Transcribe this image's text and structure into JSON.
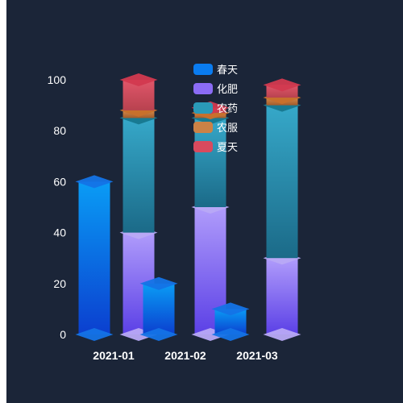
{
  "chart_data": {
    "type": "bar",
    "title": "",
    "xlabel": "",
    "ylabel": "",
    "ylim": [
      0,
      100
    ],
    "yticks": [
      0,
      20,
      40,
      60,
      80,
      100
    ],
    "categories": [
      "2021-01",
      "2021-02",
      "2021-03"
    ],
    "stacks": [
      {
        "stack_id": "spring",
        "series": [
          {
            "name": "春天",
            "values": [
              60,
              20,
              10
            ],
            "color_top": "#0a9cf5",
            "color_bottom": "#0b3fcf",
            "cap_color": "#1473e6"
          }
        ]
      },
      {
        "stack_id": "summer",
        "series": [
          {
            "name": "化肥",
            "values": [
              40,
              50,
              30
            ],
            "color_top": "#b09cfb",
            "color_bottom": "#5b40e6",
            "cap_color": "#b8a9f6"
          },
          {
            "name": "农药",
            "values": [
              45,
              35,
              60
            ],
            "color_top": "#36a8c9",
            "color_bottom": "#1b6a88",
            "cap_color": "#17778f"
          },
          {
            "name": "农服",
            "values": [
              3,
              2,
              3
            ],
            "color_top": "#d38a4c",
            "color_bottom": "#a35c2a",
            "cap_color": "#c8702b"
          },
          {
            "name": "夏天",
            "values": [
              12,
              2,
              5
            ],
            "color_top": "#e0566a",
            "color_bottom": "#b8424f",
            "cap_color": "#d2394f"
          }
        ]
      }
    ],
    "legend_position": "top-center",
    "legend": [
      {
        "name": "春天",
        "color": "#0a7cf0"
      },
      {
        "name": "化肥",
        "color": "#8b6cf5"
      },
      {
        "name": "农药",
        "color": "#2a9ab8"
      },
      {
        "name": "农服",
        "color": "#cc8246"
      },
      {
        "name": "夏天",
        "color": "#d94a5e"
      }
    ],
    "grid": false
  }
}
